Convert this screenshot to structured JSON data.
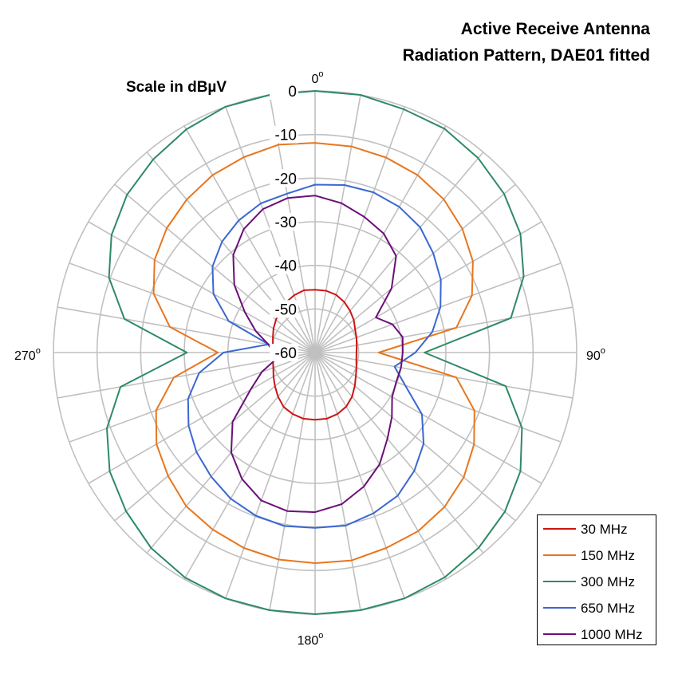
{
  "chart_data": {
    "type": "polar-line",
    "title_lines": [
      "Active Receive Antenna",
      "Radiation Pattern, DAE01 fitted"
    ],
    "radial_axis_label": "Scale in dBµV",
    "r_range": [
      -60,
      0
    ],
    "r_ticks": [
      "0",
      "-10",
      "-20",
      "-30",
      "-40",
      "-50",
      "-60"
    ],
    "r_tick_values": [
      0,
      -10,
      -20,
      -30,
      -40,
      -50,
      -60
    ],
    "angle_step_deg": 10,
    "angle_labels": [
      {
        "angle": 0,
        "text": "0"
      },
      {
        "angle": 90,
        "text": "90"
      },
      {
        "angle": 180,
        "text": "180"
      },
      {
        "angle": 270,
        "text": "270"
      }
    ],
    "angle_unit": "o",
    "grid": true,
    "legend_position": "bottom-right",
    "angles": [
      0,
      10,
      20,
      30,
      40,
      50,
      60,
      70,
      80,
      90,
      100,
      110,
      120,
      130,
      140,
      150,
      160,
      170,
      180,
      190,
      200,
      210,
      220,
      230,
      240,
      250,
      260,
      270,
      280,
      290,
      300,
      310,
      320,
      330,
      340,
      350
    ],
    "series": [
      {
        "name": "30 MHz",
        "color": "#cc1414",
        "values": [
          -45.6,
          -45.6,
          -45.9,
          -46.6,
          -47.5,
          -48.4,
          -49.4,
          -49.9,
          -50.3,
          -50.5,
          -50.4,
          -49.9,
          -49.2,
          -48.1,
          -46.8,
          -45.7,
          -45.0,
          -44.6,
          -44.6,
          -44.6,
          -45.0,
          -45.6,
          -46.8,
          -48.0,
          -49.0,
          -49.8,
          -50.2,
          -50.4,
          -50.2,
          -49.7,
          -49.0,
          -48.3,
          -47.5,
          -46.7,
          -46.0,
          -45.5
        ]
      },
      {
        "name": "150 MHz",
        "color": "#e8761e",
        "values": [
          -11.9,
          -12.0,
          -12.4,
          -13.0,
          -14.1,
          -15.9,
          -18.2,
          -21.7,
          -27.1,
          -45.4,
          -27.1,
          -21.1,
          -17.9,
          -15.5,
          -13.8,
          -12.7,
          -12.3,
          -11.6,
          -11.7,
          -11.8,
          -12.3,
          -13.1,
          -14.0,
          -16.0,
          -18.0,
          -21.2,
          -27.1,
          -37.7,
          -26.2,
          -20.6,
          -17.5,
          -15.6,
          -14.2,
          -13.0,
          -12.3,
          -11.6
        ]
      },
      {
        "name": "300 MHz",
        "color": "#2e8a64",
        "values": [
          0,
          0,
          -0.6,
          -0.7,
          -1.8,
          -3.4,
          -5.6,
          -9.1,
          -14.4,
          -34.9,
          -15.6,
          -9.5,
          -5.6,
          -3.2,
          -1.6,
          -0.5,
          0,
          0,
          0,
          0,
          0,
          -0.4,
          -1.5,
          -3.4,
          -5.6,
          -9.2,
          -14.7,
          -30.6,
          -15.6,
          -9.7,
          -6.1,
          -3.7,
          -2.2,
          -0.9,
          0,
          0
        ]
      },
      {
        "name": "650 MHz",
        "color": "#3a67d2",
        "values": [
          -21.5,
          -21.0,
          -20.9,
          -21.4,
          -22.5,
          -24.6,
          -26.7,
          -29.4,
          -32.7,
          -37.0,
          -41.5,
          -38.0,
          -31.7,
          -27.5,
          -24.6,
          -22.1,
          -20.8,
          -19.7,
          -19.8,
          -19.6,
          -20.2,
          -21.3,
          -22.9,
          -24.5,
          -26.5,
          -29.0,
          -33.0,
          -39.0,
          -49.2,
          -38.9,
          -33.1,
          -29.3,
          -26.8,
          -25.0,
          -23.6,
          -23.0
        ]
      },
      {
        "name": "1000 MHz",
        "color": "#6b0f78",
        "values": [
          -24.0,
          -25.2,
          -26.9,
          -28.5,
          -31.1,
          -37.1,
          -43.9,
          -41.1,
          -39.6,
          -39.9,
          -40.0,
          -40.2,
          -39.6,
          -37.0,
          -34.2,
          -30.4,
          -27.3,
          -24.7,
          -23.4,
          -23.1,
          -23.9,
          -26.5,
          -30.1,
          -35.3,
          -42.9,
          -47.0,
          -50.8,
          -50.5,
          -49.1,
          -45.5,
          -41.4,
          -35.8,
          -30.8,
          -27.3,
          -25.0,
          -24.0
        ]
      }
    ]
  }
}
